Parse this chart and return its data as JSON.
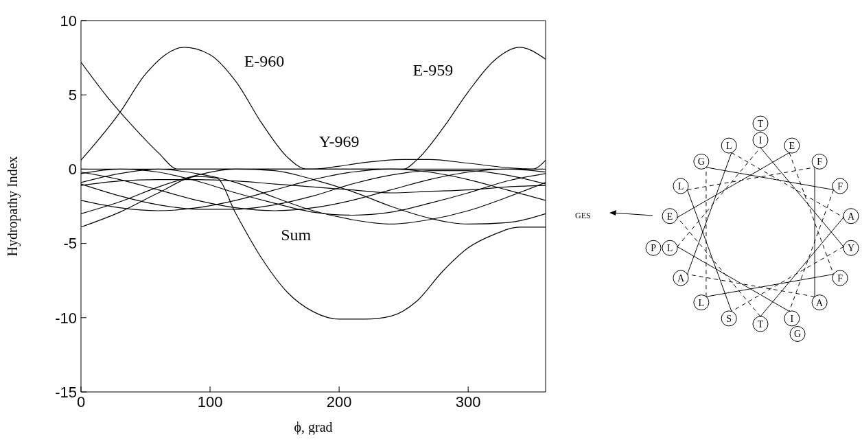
{
  "chart_data": {
    "type": "line",
    "xlabel": "ϕ,  grad",
    "ylabel": "Hydropathy Index",
    "xlim": [
      0,
      360
    ],
    "xticks": [
      0,
      100,
      200,
      300
    ],
    "ylim": [
      -15,
      10
    ],
    "yticks": [
      -15,
      -10,
      -5,
      0,
      5,
      10
    ],
    "marker": "none",
    "line_style": "solid",
    "x": [
      0,
      30,
      60,
      90,
      120,
      150,
      180,
      210,
      240,
      270,
      300,
      330,
      360
    ],
    "series": [
      {
        "name": "E-960",
        "color": "#000000",
        "x": [
          0,
          30,
          50,
          80,
          100,
          120,
          140,
          160,
          175,
          200,
          240,
          280,
          320,
          350,
          360
        ],
        "values": [
          0.6,
          3.8,
          6.4,
          8.2,
          7.7,
          5.9,
          3.1,
          0.8,
          0,
          0,
          0,
          0,
          0,
          0,
          0.6
        ]
      },
      {
        "name": "E-959",
        "color": "#000000",
        "x": [
          0,
          20,
          40,
          60,
          75,
          100,
          150,
          200,
          250,
          260,
          280,
          300,
          320,
          340,
          360
        ],
        "values": [
          7.2,
          4.9,
          2.9,
          1.1,
          0,
          0,
          0,
          0,
          0,
          0.6,
          2.7,
          5.2,
          7.3,
          8.2,
          7.4
        ]
      },
      {
        "name": "Y-969",
        "color": "#000000",
        "x": [
          0,
          60,
          120,
          180,
          200,
          220,
          250,
          270,
          300,
          330,
          350,
          360
        ],
        "values": [
          0,
          0,
          0,
          0,
          0.2,
          0.45,
          0.65,
          0.65,
          0.4,
          0.1,
          0,
          0
        ]
      },
      {
        "name": "Sum",
        "color": "#000000",
        "x": [
          0,
          30,
          60,
          90,
          105,
          120,
          140,
          160,
          180,
          200,
          220,
          240,
          260,
          280,
          300,
          320,
          340,
          360
        ],
        "values": [
          -3.9,
          -2.9,
          -1.6,
          -0.5,
          -0.6,
          -3.0,
          -6.0,
          -8.3,
          -9.6,
          -10.1,
          -10.1,
          -9.9,
          -8.9,
          -6.9,
          -5.3,
          -4.4,
          -3.9,
          -3.9
        ]
      },
      {
        "color": "#000000",
        "values": [
          -2.1,
          -2.6,
          -2.8,
          -2.6,
          -2.1,
          -1.4,
          -0.7,
          -0.2,
          0,
          -0.2,
          -0.7,
          -1.4,
          -2.1
        ]
      },
      {
        "color": "#000000",
        "values": [
          -1.0,
          -1.8,
          -2.4,
          -2.7,
          -2.7,
          -2.4,
          -1.8,
          -1.0,
          -0.4,
          -0.1,
          -0.1,
          -0.4,
          -1.0
        ]
      },
      {
        "color": "#000000",
        "values": [
          -0.2,
          -0.7,
          -1.4,
          -2.1,
          -2.6,
          -2.8,
          -2.6,
          -2.1,
          -1.4,
          -0.7,
          -0.2,
          0,
          -0.2
        ]
      },
      {
        "color": "#000000",
        "values": [
          -0.3,
          0,
          -0.2,
          -0.8,
          -1.6,
          -2.3,
          -2.9,
          -3.1,
          -2.9,
          -2.3,
          -1.6,
          -0.8,
          -0.3
        ]
      },
      {
        "color": "#000000",
        "values": [
          -0.9,
          -0.3,
          0,
          -0.3,
          -0.9,
          -1.9,
          -2.8,
          -3.4,
          -3.7,
          -3.4,
          -2.8,
          -1.9,
          -0.9
        ]
      },
      {
        "color": "#000000",
        "values": [
          -3.0,
          -2.2,
          -1.2,
          -0.4,
          0,
          -0.1,
          -0.7,
          -1.5,
          -2.5,
          -3.3,
          -3.7,
          -3.6,
          -3.0
        ]
      },
      {
        "color": "#000000",
        "values": [
          -1.1,
          -0.8,
          -0.7,
          -0.7,
          -0.8,
          -1.0,
          -1.2,
          -1.4,
          -1.6,
          -1.5,
          -1.4,
          -1.2,
          -1.1
        ]
      }
    ],
    "annotations": [
      "I",
      "E",
      "F",
      "F",
      "A",
      "Y",
      "F",
      "A",
      "I",
      "T",
      "S",
      "L",
      "A",
      "L",
      "E",
      "L",
      "G",
      "L",
      "T",
      "G",
      "P",
      "GES"
    ]
  }
}
